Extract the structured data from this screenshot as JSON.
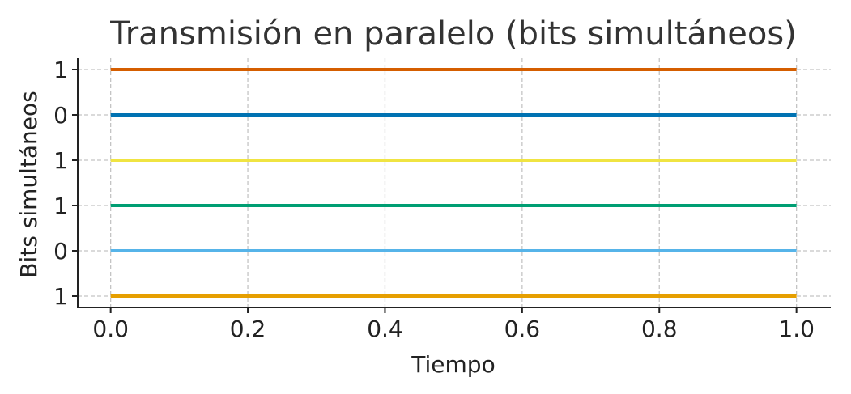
{
  "chart_data": {
    "type": "line",
    "title": "Transmisión en paralelo (bits simultáneos)",
    "xlabel": "Tiempo",
    "ylabel": "Bits simultáneos",
    "xlim": [
      -0.048,
      1.05
    ],
    "x_ticks": [
      0.0,
      0.2,
      0.4,
      0.6,
      0.8,
      1.0
    ],
    "x_tick_labels": [
      "0.0",
      "0.2",
      "0.4",
      "0.6",
      "0.8",
      "1.0"
    ],
    "y_tick_labels_top_to_bottom": [
      "1",
      "0",
      "1",
      "1",
      "0",
      "1"
    ],
    "grid": true,
    "series": [
      {
        "bit": "1",
        "x": [
          0,
          1
        ],
        "color": "#d55e00"
      },
      {
        "bit": "0",
        "x": [
          0,
          1
        ],
        "color": "#0072b2"
      },
      {
        "bit": "1",
        "x": [
          0,
          1
        ],
        "color": "#f0e442"
      },
      {
        "bit": "1",
        "x": [
          0,
          1
        ],
        "color": "#009e73"
      },
      {
        "bit": "0",
        "x": [
          0,
          1
        ],
        "color": "#56b4e9"
      },
      {
        "bit": "1",
        "x": [
          0,
          1
        ],
        "color": "#e69f00"
      }
    ]
  }
}
